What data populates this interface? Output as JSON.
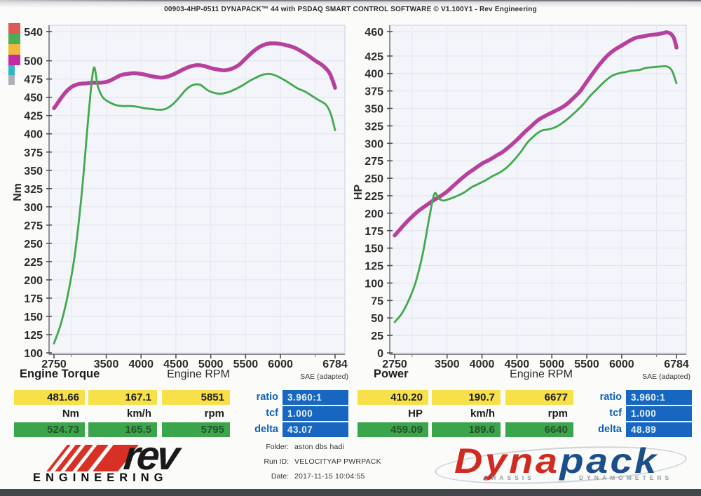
{
  "header": {
    "title": "00903-4HP-0511 DYNAPACK™ 44 with PSDAQ SMART CONTROL SOFTWARE © V1.100Y1 - Rev Engineering"
  },
  "legend": {
    "colors": [
      "#dd5a55",
      "#4cae54",
      "#eeb93c",
      "#c32ba6",
      "#2fb5c6",
      "#acb2b6"
    ]
  },
  "chart_data": [
    {
      "type": "line",
      "title": "Engine Torque",
      "xlabel": "Engine RPM",
      "ylabel": "Nm",
      "note": "SAE (adapted)",
      "xlim": [
        2750,
        6784
      ],
      "ylim": [
        100,
        540
      ],
      "x_ticks": [
        2750,
        3500,
        4000,
        4500,
        5000,
        5500,
        6000,
        6784
      ],
      "y_ticks": [
        540,
        500,
        475,
        450,
        425,
        400,
        375,
        350,
        325,
        300,
        275,
        250,
        225,
        200,
        175,
        150,
        125,
        100
      ],
      "grid_x": [
        3000,
        3500,
        4000,
        4500,
        5000,
        5500,
        6000,
        6500
      ],
      "series": [
        {
          "name": "torque-magenta-run",
          "color": "#b8409d",
          "width": 5.5,
          "points": [
            [
              2750,
              435
            ],
            [
              2900,
              455
            ],
            [
              3000,
              464
            ],
            [
              3100,
              468
            ],
            [
              3200,
              469
            ],
            [
              3300,
              470
            ],
            [
              3400,
              470
            ],
            [
              3500,
              471
            ],
            [
              3600,
              475
            ],
            [
              3700,
              480
            ],
            [
              3800,
              482
            ],
            [
              3900,
              483
            ],
            [
              4000,
              482
            ],
            [
              4100,
              480
            ],
            [
              4200,
              478
            ],
            [
              4300,
              477
            ],
            [
              4400,
              479
            ],
            [
              4500,
              483
            ],
            [
              4600,
              488
            ],
            [
              4700,
              492
            ],
            [
              4800,
              494
            ],
            [
              4900,
              493
            ],
            [
              5000,
              490
            ],
            [
              5100,
              488
            ],
            [
              5200,
              487
            ],
            [
              5300,
              489
            ],
            [
              5400,
              494
            ],
            [
              5500,
              503
            ],
            [
              5600,
              512
            ],
            [
              5700,
              519
            ],
            [
              5800,
              523
            ],
            [
              5900,
              524
            ],
            [
              6000,
              523
            ],
            [
              6100,
              521
            ],
            [
              6200,
              518
            ],
            [
              6300,
              513
            ],
            [
              6400,
              507
            ],
            [
              6500,
              500
            ],
            [
              6600,
              494
            ],
            [
              6700,
              484
            ],
            [
              6760,
              470
            ],
            [
              6784,
              463
            ]
          ]
        },
        {
          "name": "torque-green-run",
          "color": "#41a94e",
          "width": 2.8,
          "points": [
            [
              2750,
              113
            ],
            [
              2850,
              140
            ],
            [
              2950,
              180
            ],
            [
              3050,
              235
            ],
            [
              3150,
              320
            ],
            [
              3250,
              430
            ],
            [
              3320,
              490
            ],
            [
              3380,
              465
            ],
            [
              3450,
              450
            ],
            [
              3550,
              443
            ],
            [
              3650,
              439
            ],
            [
              3750,
              438
            ],
            [
              3850,
              438
            ],
            [
              3950,
              437
            ],
            [
              4050,
              435
            ],
            [
              4150,
              434
            ],
            [
              4250,
              433
            ],
            [
              4350,
              434
            ],
            [
              4450,
              440
            ],
            [
              4550,
              450
            ],
            [
              4650,
              461
            ],
            [
              4750,
              467
            ],
            [
              4850,
              467
            ],
            [
              4950,
              460
            ],
            [
              5050,
              456
            ],
            [
              5150,
              455
            ],
            [
              5250,
              457
            ],
            [
              5350,
              461
            ],
            [
              5450,
              466
            ],
            [
              5550,
              472
            ],
            [
              5650,
              477
            ],
            [
              5750,
              481
            ],
            [
              5851,
              482
            ],
            [
              5950,
              479
            ],
            [
              6050,
              474
            ],
            [
              6150,
              468
            ],
            [
              6250,
              462
            ],
            [
              6350,
              458
            ],
            [
              6450,
              452
            ],
            [
              6550,
              446
            ],
            [
              6650,
              440
            ],
            [
              6720,
              428
            ],
            [
              6784,
              405
            ]
          ]
        }
      ]
    },
    {
      "type": "line",
      "title": "Power",
      "xlabel": "Engine RPM",
      "ylabel": "HP",
      "note": "SAE (adapted)",
      "xlim": [
        2750,
        6784
      ],
      "ylim": [
        0,
        460
      ],
      "x_ticks": [
        2750,
        3500,
        4000,
        4500,
        5000,
        5500,
        6000,
        6784
      ],
      "y_ticks": [
        460,
        425,
        400,
        375,
        350,
        325,
        300,
        275,
        250,
        225,
        200,
        175,
        150,
        125,
        100,
        75,
        50,
        25,
        0
      ],
      "grid_x": [
        3000,
        3500,
        4000,
        4500,
        5000,
        5500,
        6000,
        6500
      ],
      "series": [
        {
          "name": "power-magenta-run",
          "color": "#b8409d",
          "width": 5.5,
          "points": [
            [
              2750,
              168
            ],
            [
              2900,
              185
            ],
            [
              3000,
              195
            ],
            [
              3100,
              204
            ],
            [
              3200,
              211
            ],
            [
              3300,
              218
            ],
            [
              3400,
              224
            ],
            [
              3500,
              231
            ],
            [
              3600,
              240
            ],
            [
              3700,
              249
            ],
            [
              3800,
              257
            ],
            [
              3900,
              264
            ],
            [
              4000,
              271
            ],
            [
              4100,
              276
            ],
            [
              4200,
              282
            ],
            [
              4300,
              288
            ],
            [
              4400,
              296
            ],
            [
              4500,
              305
            ],
            [
              4600,
              315
            ],
            [
              4700,
              324
            ],
            [
              4800,
              333
            ],
            [
              4900,
              339
            ],
            [
              5000,
              344
            ],
            [
              5100,
              349
            ],
            [
              5200,
              355
            ],
            [
              5300,
              364
            ],
            [
              5400,
              374
            ],
            [
              5500,
              388
            ],
            [
              5600,
              402
            ],
            [
              5700,
              415
            ],
            [
              5800,
              426
            ],
            [
              5900,
              434
            ],
            [
              6000,
              440
            ],
            [
              6100,
              446
            ],
            [
              6200,
              451
            ],
            [
              6300,
              453
            ],
            [
              6400,
              455
            ],
            [
              6500,
              456
            ],
            [
              6600,
              458
            ],
            [
              6640,
              459
            ],
            [
              6700,
              457
            ],
            [
              6750,
              450
            ],
            [
              6784,
              437
            ]
          ]
        },
        {
          "name": "power-green-run",
          "color": "#41a94e",
          "width": 2.8,
          "points": [
            [
              2750,
              44
            ],
            [
              2850,
              56
            ],
            [
              2950,
              75
            ],
            [
              3050,
              101
            ],
            [
              3150,
              141
            ],
            [
              3250,
              196
            ],
            [
              3320,
              228
            ],
            [
              3380,
              221
            ],
            [
              3450,
              218
            ],
            [
              3550,
              221
            ],
            [
              3650,
              225
            ],
            [
              3750,
              230
            ],
            [
              3850,
              237
            ],
            [
              3950,
              242
            ],
            [
              4050,
              247
            ],
            [
              4150,
              253
            ],
            [
              4250,
              258
            ],
            [
              4350,
              265
            ],
            [
              4450,
              275
            ],
            [
              4550,
              287
            ],
            [
              4650,
              301
            ],
            [
              4750,
              311
            ],
            [
              4850,
              318
            ],
            [
              4950,
              320
            ],
            [
              5050,
              323
            ],
            [
              5150,
              329
            ],
            [
              5250,
              337
            ],
            [
              5350,
              346
            ],
            [
              5450,
              356
            ],
            [
              5550,
              368
            ],
            [
              5650,
              378
            ],
            [
              5750,
              388
            ],
            [
              5851,
              396
            ],
            [
              5950,
              400
            ],
            [
              6050,
              402
            ],
            [
              6150,
              404
            ],
            [
              6250,
              405
            ],
            [
              6350,
              408
            ],
            [
              6450,
              409
            ],
            [
              6550,
              410
            ],
            [
              6650,
              410
            ],
            [
              6720,
              404
            ],
            [
              6784,
              386
            ]
          ]
        }
      ]
    }
  ],
  "panels": [
    {
      "peak": [
        "481.66",
        "167.1",
        "5851"
      ],
      "units": [
        "Nm",
        "km/h",
        "rpm"
      ],
      "ref": [
        "524.73",
        "165.5",
        "5795"
      ],
      "ratio_label": "ratio",
      "ratio": "3.960:1",
      "tcf_label": "tcf",
      "tcf": "1.000",
      "delta_label": "delta",
      "delta": "43.07"
    },
    {
      "peak": [
        "410.20",
        "190.7",
        "6677"
      ],
      "units": [
        "HP",
        "km/h",
        "rpm"
      ],
      "ref": [
        "459.09",
        "189.6",
        "6640"
      ],
      "ratio_label": "ratio",
      "ratio": "3.960:1",
      "tcf_label": "tcf",
      "tcf": "1.000",
      "delta_label": "delta",
      "delta": "48.89"
    }
  ],
  "info": {
    "folder_label": "Folder:",
    "folder": "aston dbs hadi",
    "run_label": "Run ID:",
    "run": "VELOCITYAP PWRPACK",
    "date_label": "Date:",
    "date": "2017-11-15 10:04:55"
  },
  "logos": {
    "rev": {
      "word": "rev",
      "sub": "ENGINEERING"
    },
    "dynapack": {
      "part1": "Dyna",
      "part2": "pack",
      "sub1": "CHASSIS",
      "sub2": "DYNAMOMETERS"
    }
  }
}
